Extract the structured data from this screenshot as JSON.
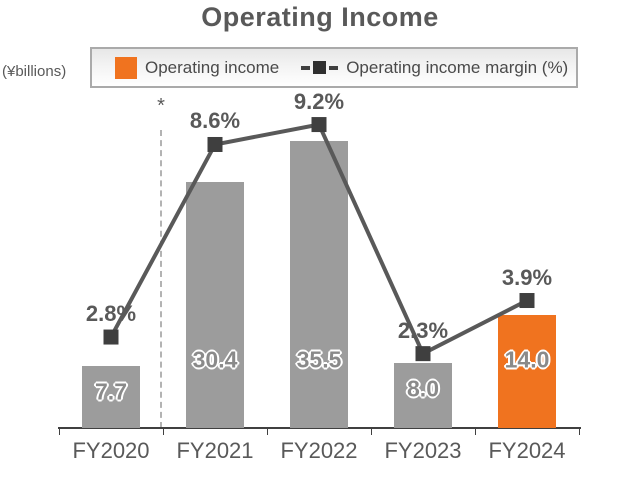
{
  "title": "Operating Income",
  "y_axis_unit": "(¥billions)",
  "legend": {
    "items": [
      {
        "label": "Operating income",
        "swatch": "orange-square"
      },
      {
        "label": "Operating income margin (%)",
        "swatch": "dashed-line-square-marker"
      }
    ]
  },
  "annotation": {
    "symbol": "*",
    "position": "between FY2020 and FY2021"
  },
  "colors": {
    "bar_default": "#9C9C9C",
    "bar_highlight": "#F0731F",
    "line": "#595959",
    "marker": "#3F3F3F",
    "text": "#595959",
    "bar_value_text": "#8A8A8A",
    "axis": "#404040",
    "separator": "#B3B3B3"
  },
  "chart_data": {
    "type": "bar",
    "title": "Operating Income",
    "ylabel": "(¥billions)",
    "categories": [
      "FY2020",
      "FY2021",
      "FY2022",
      "FY2023",
      "FY2024"
    ],
    "series": [
      {
        "name": "Operating income",
        "type": "bar",
        "unit": "¥billions",
        "values": [
          7.7,
          30.4,
          35.5,
          8.0,
          14.0
        ],
        "highlight_index": 4
      },
      {
        "name": "Operating income margin (%)",
        "type": "line",
        "unit": "%",
        "values": [
          2.8,
          8.6,
          9.2,
          2.3,
          3.9
        ]
      }
    ],
    "value_labels": true,
    "legend_position": "top",
    "grid": false
  }
}
